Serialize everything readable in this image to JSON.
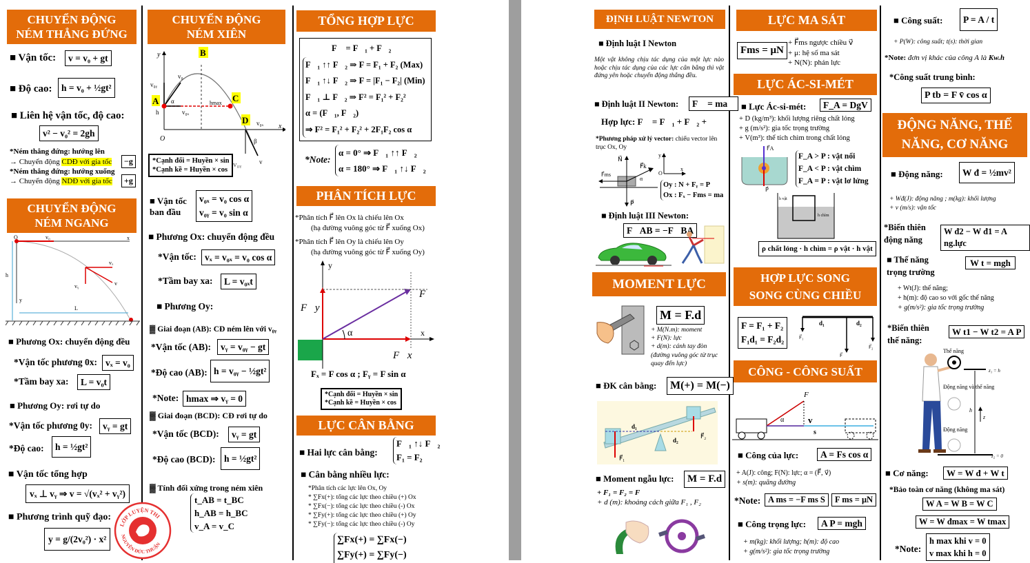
{
  "colors": {
    "header": "#e36c0a",
    "highlight": "#ffff00",
    "gutter": "#9e9e9e"
  },
  "c1": {
    "h1": "CHUYỂN ĐỘNG\nNÉM THẲNG ĐỨNG",
    "vel_label": "■ Vận tốc:",
    "vel_f": "v = v₀ + gt",
    "h_label": "■ Độ cao:",
    "h_f": "h = v₀ + ½gt²",
    "rel_label": "■ Liên hệ vận tốc, độ cao:",
    "rel_f": "v² − v₀² = 2gh",
    "up_note": "*Ném thẳng đứng: hướng lên",
    "up_pre": "→ Chuyển động ",
    "up_hl": "CDĐ với gia tốc",
    "up_f": "−g",
    "down_note": "*Ném thẳng đứng: hướng xuống",
    "down_pre": "→ Chuyển động ",
    "down_hl": "NDĐ với gia tốc",
    "down_f": "+g",
    "h2": "CHUYỂN ĐỘNG\nNÉM NGANG",
    "dg": {
      "o": "O",
      "v0": "v₀",
      "x": "x",
      "h": "h",
      "y": "y",
      "L": "L",
      "vx": "vₓ",
      "vy": "vᵧ",
      "v": "v"
    },
    "ox": "■ Phương Ox: chuyển động đều",
    "vx_label": "*Vận tốc phương 0x:",
    "vx_f": "vₓ = v₀",
    "L_label": "*Tầm bay xa:",
    "L_f": "L = v₀t",
    "oy": "■ Phương Oy: rơi tự do",
    "vy_label": "*Vận tốc phương 0y:",
    "vy_f": "vᵧ = gt",
    "h2_label": "*Độ cao:",
    "h2_f": "h = ½gt²",
    "tot": "■ Vận tốc tổng hợp",
    "tot_f": "vₓ ⊥ vᵧ ⇒ v = √(vₓ² + vᵧ²)",
    "traj": "■ Phương trình quỹ đạo:",
    "traj_f": "y = g/(2v₀²) · x²",
    "stamp_top": "LỚP LUYỆN THI",
    "stamp_bottom": "NGUYỄN ĐỨC THUẬN"
  },
  "c2": {
    "h1": "CHUYỂN ĐỘNG\nNÉM XIÊN",
    "dg": {
      "a": "A",
      "b": "B",
      "c": "C",
      "d": "D",
      "o": "O",
      "x": "x",
      "y": "y",
      "v0": "v₀",
      "v0x": "v₀ₓ",
      "v0y": "v₀ᵧ",
      "hmax": "hmax",
      "h": "h",
      "beta": "β",
      "alpha": "α",
      "v": "v"
    },
    "trig": "*Cạnh đối = Huyền × sin\n*Cạnh kề = Huyền × cos",
    "v0y_side": "v₀ᵧ",
    "init_label": "■ Vận tốc\n   ban đầu",
    "init_f": "v₀ₓ = v₀ cos α\nv₀ᵧ = v₀ sin α",
    "ox": "■ Phương Ox: chuyển động đều",
    "vx_label": "*Vận tốc:",
    "vx_f": "vₓ = v₀ₓ = v₀ cos α",
    "L_label": "*Tầm bay xa:",
    "L_f": "L = v₀ₓt",
    "oy": "■ Phương Oy:",
    "ab": "▓ Giai đoạn (AB): CĐ ném lên với v₀ᵧ",
    "ab_v_label": "*Vận tốc (AB):",
    "ab_v_f": "vᵧ = v₀ᵧ − gt",
    "ab_h_label": "*Độ cao (AB):",
    "ab_h_f": "h = v₀ᵧ − ½gt²",
    "note_label": "*Note:",
    "note_f": "hmax ⇒ vᵧ = 0",
    "bcd": "▓ Giai đoạn (BCD): CĐ rơi tự do",
    "bcd_v_label": "*Vận tốc (BCD):",
    "bcd_v_f": "vᵧ = gt",
    "bcd_h_label": "*Độ cao (BCD):",
    "bcd_h_f": "h = ½gt²",
    "sym": "▓ Tính đối xứng trong ném xiên",
    "sym_f": [
      "t_AB = t_BC",
      "h_AB = h_BC",
      "v_A = v_C"
    ]
  },
  "c3": {
    "h1": "TỔNG HỢP LỰC",
    "sum": [
      "F⃗ = F⃗₁ + F⃗₂",
      "F⃗₁ ↑↑ F⃗₂ ⇒ F = F₁ + F₂   (Max)",
      "F⃗₁ ↑↓ F⃗₂ ⇒ F = |F₁ − F₂|  (Min)",
      "F⃗₁ ⊥ F⃗₂ ⇒ F² = F₁² + F₂²",
      "α = (F⃗₁, F⃗₂)",
      "⇒ F² = F₁² + F₂² + 2F₁F₂ cos α"
    ],
    "note_label": "*Note:",
    "note": [
      "α = 0° ⇒ F⃗₁ ↑↑ F⃗₂",
      "α = 180° ⇒ F⃗₁ ↑↓ F⃗₂"
    ],
    "h2": "PHÂN TÍCH LỰC",
    "an": [
      "*Phân tích F⃗ lên Ox là chiếu lên Ox",
      "(hạ đường vuông góc từ F⃗ xuống Ox)",
      "*Phân tích F⃗ lên Oy là chiếu lên Oy",
      "(hạ đường vuông góc từ F⃗ xuống Oy)"
    ],
    "dg": {
      "y": "y",
      "x": "x",
      "f": "F⃗",
      "fy": "F⃗y",
      "fx": "F⃗x",
      "alpha": "α"
    },
    "comp_f": "Fₓ = F cos α ; Fᵧ = F sin α",
    "trig": "*Cạnh đối = Huyền × sin\n*Cạnh kề = Huyền × cos",
    "h3": "LỰC CÂN BẰNG",
    "two_label": "■ Hai lực cân bằng:",
    "two_f": "F⃗₁ ↑↓ F⃗₂\nF₁ = F₂",
    "many": "■ Cân bằng nhiều lực:",
    "many_notes": [
      "*Phân tích các lực lên Ox, Oy",
      "* ∑Fx(+): tổng các lực theo chiều (+) Ox",
      "* ∑Fx(−): tổng các lực theo chiều (-) Ox",
      "* ∑Fy(+): tổng các lực theo chiều (+) Oy",
      "* ∑Fy(−): tổng các lực theo chiều (-) Oy"
    ],
    "many_f": [
      "∑Fx(+) = ∑Fx(−)",
      "∑Fy(+) = ∑Fy(−)"
    ]
  },
  "c4": {
    "h1": "ĐỊNH LUẬT NEWTON",
    "l1": "■ Định luật I Newton",
    "l1_text": "Một vật không chịu tác dụng của một lực nào hoặc chịu tác dụng của các lực cân bằng thì vật đứng yên hoặc chuyển động thẳng đều.",
    "l2": "■ Định luật II Newton:",
    "l2_f": "F⃗ = ma⃗",
    "net": "Hợp lực:  F⃗ = F⃗₁ + F⃗₂ + ⋯",
    "method_b": "*Phương pháp xử lý vector:",
    "method": " chiếu vector lên trục Ox, Oy",
    "dg": {
      "n": "N⃗",
      "fk": "F⃗k",
      "fms": "F⃗ms",
      "p": "P⃗",
      "alpha": "α",
      "o": "O",
      "x": "x",
      "y": "y"
    },
    "axes_f": "Oy : N + Fᵧ = P\nOx : Fₓ − Fms = ma",
    "l3": "■ Định luật III Newton:",
    "l3_f": "F⃗AB = −F⃗BA",
    "h2": "MOMENT LỰC",
    "m_f": "M = F.d",
    "m_notes": [
      "+ M(N.m): moment",
      "+ F(N): lực",
      "+ d(m): cánh tay đòn",
      "(đường vuông góc từ trục",
      "quay đến lực)"
    ],
    "eq_label": "■ ĐK cân bằng:",
    "eq_f": "M(+) = M(−)",
    "seesaw": {
      "d1": "d₁",
      "d2": "d₂",
      "f1": "F⃗₁",
      "f2": "F⃗₂"
    },
    "couple_label": "■ Moment ngẫu lực:",
    "couple_f": "M = F.d",
    "couple_notes": [
      "+ F₁ = F₂ = F",
      "+ d (m): khoảng cách giữa F₁ , F₂"
    ]
  },
  "c5": {
    "h1": "LỰC MA SÁT",
    "ms_f": "Fms = μN",
    "ms_notes": [
      "+ F⃗ms ngược chiều v⃗",
      "+ μ: hệ số ma sát",
      "+ N(N): phản lực"
    ],
    "h2": "LỰC ÁC-SI-MÉT",
    "a_label": "■ Lực Ác-si-mét:",
    "a_f": "F_A = DgV",
    "a_notes": [
      "+ D (kg/m³): khối lượng riêng chất lỏng",
      "+ g (m/s²): gia tốc trọng trường",
      "+ V(m³): thể tích chìm trong chất lỏng"
    ],
    "float_f": "F_A > P :  vật nổi\nF_A < P :  vật chìm\nF_A = P :  vật lơ lửng",
    "dg": {
      "fa": "F⃗A",
      "p": "P⃗",
      "hvat": "h vật",
      "hchim": "h chìm"
    },
    "rho_f": "ρ chất lỏng · h chìm = ρ vật · h vật",
    "h3": "HỢP LỰC SONG\nSONG CÙNG CHIỀU",
    "par_f": "F = F₁ + F₂\nF₁d₁ = F₂d₂",
    "lever": {
      "d1": "d₁",
      "d2": "d₂",
      "f1": "F⃗₁",
      "f2": "F⃗₂",
      "f": "F⃗"
    },
    "h4": "CÔNG - CÔNG SUẤT",
    "cart": {
      "f": "F⃗",
      "v": "v⃗",
      "alpha": "α",
      "s": "s"
    },
    "w_label": "■ Công của lực:",
    "w_f": "A = Fs cos α",
    "w_notes": [
      "+ A(J): công; F(N): lực;  α = (F⃗, v⃗)",
      "+ s(m): quãng đường"
    ],
    "note_label": "*Note:",
    "note_f1": "A ms = −F ms S",
    "note_f2": "F ms = μN",
    "g_label": "■ Công trọng lực:",
    "g_f": "A P = mgh",
    "g_notes": [
      "+ m(kg): khối lượng; h(m): độ cao",
      "+ g(m/s²): gia tốc trọng trường"
    ]
  },
  "c6": {
    "p_label": "■ Công suất:",
    "p_f": "P = A / t",
    "p_note": "+ P(W): công suất; t(s): thời gian",
    "unit_b": "*Note:",
    "unit": " đơn vị khác của công A là ",
    "unit_e": "Kw.h",
    "avg": "*Công suất trung bình:",
    "avg_f": "P tb = F v̄ cos α",
    "h1": "ĐỘNG NĂNG, THẾ\nNĂNG, CƠ NĂNG",
    "k_label": "■ Động năng:",
    "k_f": "W đ = ½mv²",
    "k_notes": [
      "+ Wđ(J): động năng ; m(kg): khối lượng",
      "+ v (m/s): vận tốc"
    ],
    "dk_label": "*Biến thiên\n động năng",
    "dk_f": "W đ2 − W đ1 = A ng.lực",
    "pe_label": "■ Thế năng\n   trọng trường",
    "pe_f": "W t = mgh",
    "pe_notes": [
      "+ Wt(J): thế năng;",
      "+ h(m): độ cao so với gốc thế năng",
      "+ g(m/s²): gia tốc trọng trường"
    ],
    "dpe_label": "*Biến thiên\n thế năng:",
    "dpe_f": "W t1 − W t2 = A P",
    "fig": {
      "top": "Thế năng",
      "mid": "Động năng\nvà thế năng",
      "bot": "Động năng",
      "z1": "z₁ = h",
      "z2": "z₂ = 0",
      "h": "h",
      "z": "z"
    },
    "me_label": "■ Cơ năng:",
    "me_f": "W = W đ + W t",
    "cons": "*Bảo toàn cơ năng (không ma sát)",
    "cons_f1": "W A = W B = W C",
    "cons_f2": "W = W đmax = W tmax",
    "note_label": "*Note:",
    "note_f": "h max khi v = 0\nv max khi h = 0"
  }
}
